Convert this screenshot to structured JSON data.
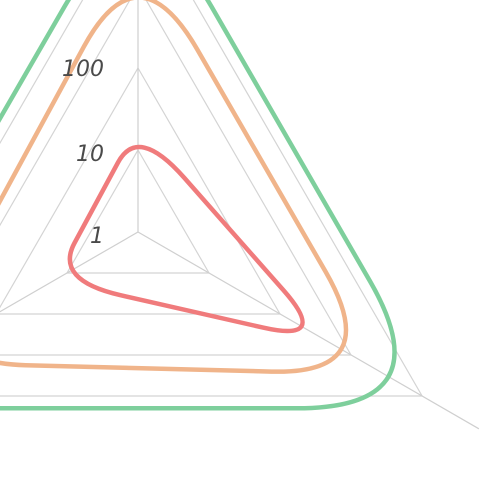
{
  "chart_data": {
    "type": "radar",
    "scale": "log",
    "axes_count": 3,
    "rings": [
      1,
      10,
      100,
      1000,
      10000
    ],
    "tick_labels": [
      "1",
      "10",
      "100"
    ],
    "grid": true,
    "series": [
      {
        "color": "#f07b7c",
        "values": [
          20,
          500,
          15
        ]
      },
      {
        "color": "#f0b48a",
        "values": [
          3000,
          3000,
          1500
        ]
      },
      {
        "color": "#7ecf9c",
        "values": [
          20000,
          20000,
          20000
        ]
      }
    ]
  }
}
